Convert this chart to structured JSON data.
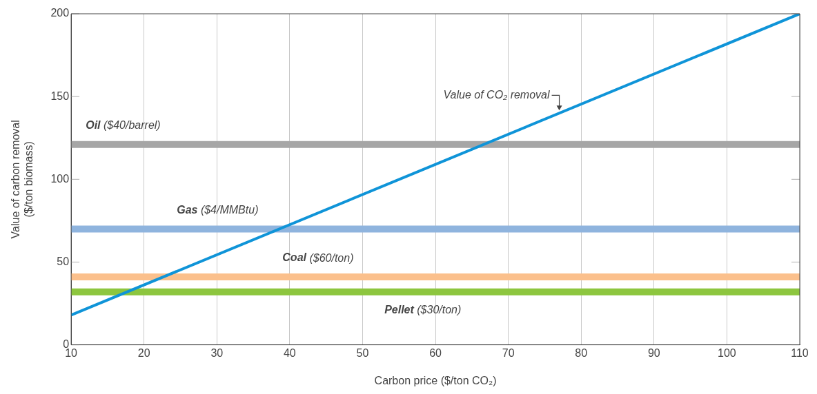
{
  "chart_data": {
    "type": "line",
    "xlabel": "Carbon price ($/ton CO₂)",
    "ylabel": "Value of carbon removal\n($/ton biomass)",
    "xlim": [
      10,
      110
    ],
    "xticks": [
      10,
      20,
      30,
      40,
      50,
      60,
      70,
      80,
      90,
      100,
      110
    ],
    "ylim": [
      0,
      200
    ],
    "yticks": [
      0,
      50,
      100,
      150,
      200
    ],
    "grid": "x",
    "legend": false,
    "marker": "none",
    "line_style": "solid",
    "ref_lines": [
      {
        "axis": "y",
        "value": 121,
        "label": "Oil ($40/barrel)",
        "color": "#a6a6a6"
      },
      {
        "axis": "y",
        "value": 70,
        "label": "Gas ($4/MMBtu)",
        "color": "#8fb4de"
      },
      {
        "axis": "y",
        "value": 41,
        "label": "Coal ($60/ton)",
        "color": "#fbc08c"
      },
      {
        "axis": "y",
        "value": 32,
        "label": "Pellet ($30/ton)",
        "color": "#8dc63f"
      }
    ],
    "series": [
      {
        "name": "Value of CO₂ removal",
        "color": "#0f94d8",
        "x": [
          10,
          110
        ],
        "values": [
          18,
          200
        ]
      }
    ]
  }
}
